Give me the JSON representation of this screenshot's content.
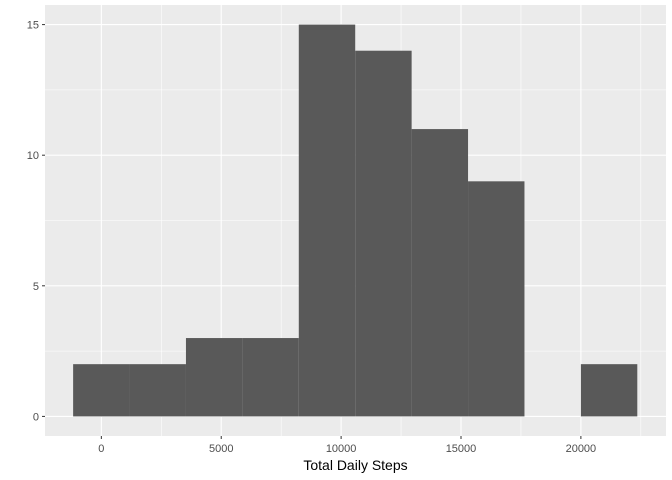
{
  "chart_data": {
    "type": "bar",
    "title": "",
    "xlabel": "Total Daily Steps",
    "ylabel": "",
    "bin_width": 2353,
    "bins": [
      {
        "start": -1177,
        "end": 1176,
        "count": 2
      },
      {
        "start": 1176,
        "end": 3529,
        "count": 2
      },
      {
        "start": 3529,
        "end": 5882,
        "count": 3
      },
      {
        "start": 5882,
        "end": 8235,
        "count": 3
      },
      {
        "start": 8235,
        "end": 10588,
        "count": 15
      },
      {
        "start": 10588,
        "end": 12941,
        "count": 14
      },
      {
        "start": 12941,
        "end": 15294,
        "count": 11
      },
      {
        "start": 15294,
        "end": 17647,
        "count": 9
      },
      {
        "start": 17647,
        "end": 20000,
        "count": 0
      },
      {
        "start": 20000,
        "end": 22353,
        "count": 2
      }
    ],
    "xlim": [
      -2350,
      23550
    ],
    "ylim": [
      -0.75,
      15.75
    ],
    "x_ticks": [
      0,
      5000,
      10000,
      15000,
      20000
    ],
    "x_tick_labels": [
      "0",
      "5000",
      "10000",
      "15000",
      "20000"
    ],
    "x_minor_ticks": [
      -2500,
      2500,
      7500,
      12500,
      17500,
      22500
    ],
    "y_ticks": [
      0,
      5,
      10,
      15
    ],
    "y_tick_labels": [
      "0",
      "5",
      "10",
      "15"
    ],
    "y_minor_ticks": [
      2.5,
      7.5,
      12.5
    ],
    "grid": true,
    "colors": {
      "panel": "#ebebeb",
      "grid": "#ffffff",
      "bar": "#595959",
      "tick": "#333333"
    }
  }
}
